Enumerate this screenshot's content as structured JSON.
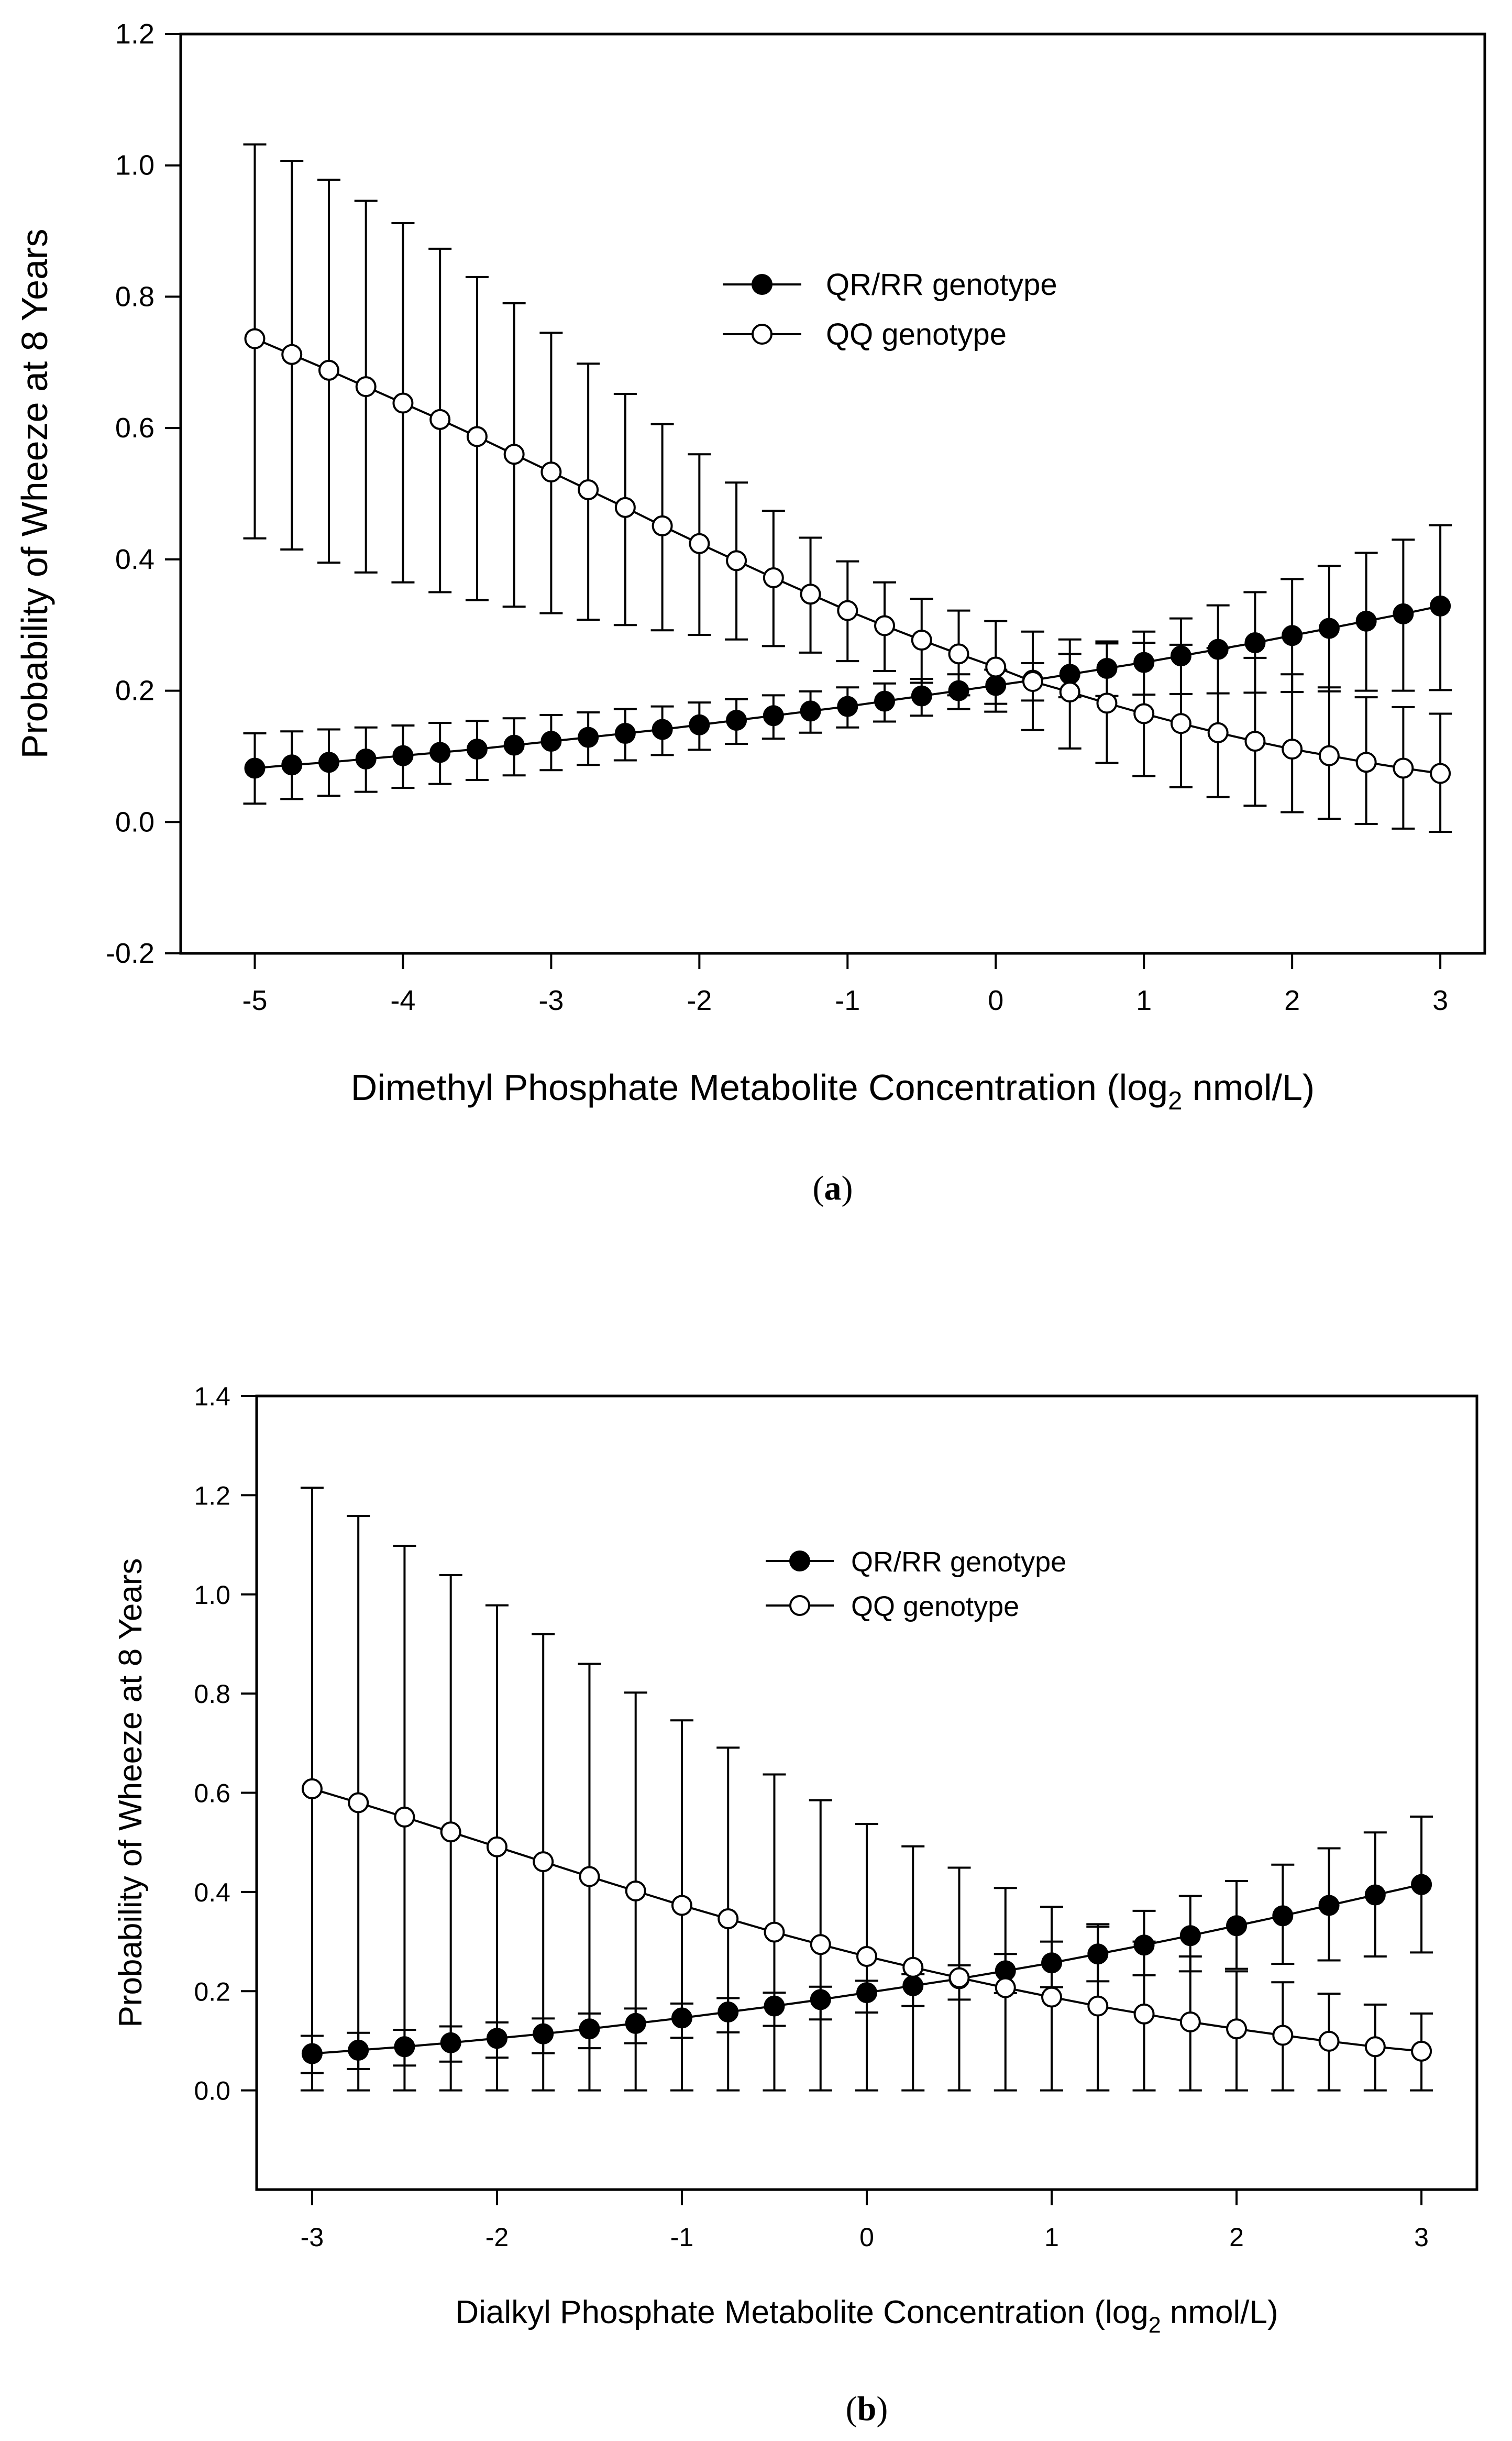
{
  "colors": {
    "line": "#000000",
    "filled_marker": "#000000",
    "open_marker": "#ffffff"
  },
  "chart_data": [
    {
      "type": "line",
      "panel_label": "a",
      "xlabel": "Dimethyl Phosphate Metabolite Concentration (log",
      "xlabel_sub": "2",
      "xlabel_end": " nmol/L)",
      "ylabel": "Probability of Wheeze at 8 Years",
      "xlim": [
        -5.5,
        3.3
      ],
      "ylim": [
        -0.2,
        1.2
      ],
      "xticks": [
        -5,
        -4,
        -3,
        -2,
        -1,
        0,
        1,
        2,
        3
      ],
      "yticks": [
        -0.2,
        0.0,
        0.2,
        0.4,
        0.6,
        0.8,
        1.0,
        1.2
      ],
      "grid": false,
      "legend_position": "top-right",
      "x": [
        -5,
        -4.75,
        -4.5,
        -4.25,
        -4,
        -3.75,
        -3.5,
        -3.25,
        -3,
        -2.75,
        -2.5,
        -2.25,
        -2,
        -1.75,
        -1.5,
        -1.25,
        -1,
        -0.75,
        -0.5,
        -0.25,
        0,
        0.25,
        0.5,
        0.75,
        1,
        1.25,
        1.5,
        1.75,
        2,
        2.25,
        2.5,
        2.75,
        3
      ],
      "series": [
        {
          "name": "QR/RR genotype",
          "marker": "filled",
          "y": [
            0.082,
            0.087,
            0.091,
            0.096,
            0.101,
            0.106,
            0.111,
            0.117,
            0.123,
            0.129,
            0.135,
            0.141,
            0.148,
            0.155,
            0.162,
            0.169,
            0.176,
            0.184,
            0.192,
            0.2,
            0.208,
            0.216,
            0.225,
            0.234,
            0.243,
            0.253,
            0.263,
            0.273,
            0.284,
            0.295,
            0.306,
            0.317,
            0.329
          ],
          "upper": [
            0.135,
            0.138,
            0.141,
            0.144,
            0.147,
            0.151,
            0.154,
            0.158,
            0.163,
            0.167,
            0.172,
            0.176,
            0.182,
            0.187,
            0.193,
            0.199,
            0.205,
            0.211,
            0.218,
            0.225,
            0.232,
            0.242,
            0.256,
            0.272,
            0.29,
            0.31,
            0.33,
            0.35,
            0.37,
            0.39,
            0.41,
            0.43,
            0.452
          ],
          "lower": [
            0.028,
            0.035,
            0.04,
            0.046,
            0.052,
            0.058,
            0.064,
            0.071,
            0.079,
            0.087,
            0.094,
            0.102,
            0.11,
            0.119,
            0.127,
            0.136,
            0.144,
            0.153,
            0.162,
            0.172,
            0.18,
            0.185,
            0.19,
            0.192,
            0.194,
            0.195,
            0.196,
            0.197,
            0.198,
            0.199,
            0.2,
            0.2,
            0.201
          ]
        },
        {
          "name": "QQ genotype",
          "marker": "open",
          "y": [
            0.736,
            0.712,
            0.688,
            0.663,
            0.638,
            0.613,
            0.587,
            0.56,
            0.533,
            0.506,
            0.479,
            0.451,
            0.424,
            0.398,
            0.372,
            0.347,
            0.322,
            0.299,
            0.277,
            0.256,
            0.236,
            0.214,
            0.198,
            0.181,
            0.165,
            0.15,
            0.136,
            0.123,
            0.111,
            0.101,
            0.091,
            0.082,
            0.074
          ],
          "upper": [
            1.032,
            1.007,
            0.978,
            0.946,
            0.912,
            0.873,
            0.83,
            0.79,
            0.745,
            0.698,
            0.652,
            0.606,
            0.56,
            0.517,
            0.474,
            0.433,
            0.397,
            0.365,
            0.34,
            0.322,
            0.306,
            0.29,
            0.278,
            0.275,
            0.273,
            0.27,
            0.265,
            0.25,
            0.225,
            0.205,
            0.19,
            0.175,
            0.165
          ],
          "lower": [
            0.432,
            0.415,
            0.395,
            0.38,
            0.365,
            0.35,
            0.338,
            0.328,
            0.318,
            0.308,
            0.3,
            0.292,
            0.285,
            0.278,
            0.268,
            0.258,
            0.245,
            0.23,
            0.212,
            0.193,
            0.168,
            0.14,
            0.112,
            0.09,
            0.07,
            0.053,
            0.038,
            0.025,
            0.015,
            0.005,
            -0.003,
            -0.01,
            -0.015
          ]
        }
      ]
    },
    {
      "type": "line",
      "panel_label": "b",
      "xlabel": "Dialkyl Phosphate Metabolite Concentration (log",
      "xlabel_sub": "2",
      "xlabel_end": " nmol/L)",
      "ylabel": "Probability of Wheeze at 8 Years",
      "xlim": [
        -3.3,
        3.3
      ],
      "ylim": [
        -0.2,
        1.4
      ],
      "xticks": [
        -3,
        -2,
        -1,
        0,
        1,
        2,
        3
      ],
      "yticks": [
        0.0,
        0.2,
        0.4,
        0.6,
        0.8,
        1.0,
        1.2,
        1.4
      ],
      "grid": false,
      "legend_position": "top-right",
      "x": [
        -3,
        -2.75,
        -2.5,
        -2.25,
        -2,
        -1.75,
        -1.5,
        -1.25,
        -1,
        -0.75,
        -0.5,
        -0.25,
        0,
        0.25,
        0.5,
        0.75,
        1,
        1.25,
        1.5,
        1.75,
        2,
        2.25,
        2.5,
        2.75,
        3
      ],
      "series": [
        {
          "name": "QR/RR genotype",
          "marker": "filled",
          "y": [
            0.074,
            0.081,
            0.088,
            0.096,
            0.105,
            0.114,
            0.124,
            0.135,
            0.146,
            0.158,
            0.17,
            0.183,
            0.197,
            0.211,
            0.225,
            0.241,
            0.257,
            0.275,
            0.293,
            0.312,
            0.332,
            0.352,
            0.373,
            0.394,
            0.415
          ],
          "upper": [
            0.11,
            0.116,
            0.122,
            0.129,
            0.137,
            0.145,
            0.155,
            0.165,
            0.175,
            0.186,
            0.197,
            0.209,
            0.221,
            0.234,
            0.252,
            0.275,
            0.3,
            0.33,
            0.362,
            0.392,
            0.422,
            0.455,
            0.488,
            0.52,
            0.552
          ],
          "lower": [
            0.035,
            0.043,
            0.05,
            0.058,
            0.066,
            0.075,
            0.085,
            0.095,
            0.106,
            0.117,
            0.13,
            0.143,
            0.157,
            0.17,
            0.183,
            0.196,
            0.208,
            0.22,
            0.232,
            0.24,
            0.245,
            0.255,
            0.262,
            0.27,
            0.278
          ]
        },
        {
          "name": "QQ genotype",
          "marker": "open",
          "y": [
            0.608,
            0.58,
            0.551,
            0.521,
            0.491,
            0.461,
            0.431,
            0.402,
            0.373,
            0.346,
            0.319,
            0.294,
            0.27,
            0.248,
            0.227,
            0.207,
            0.188,
            0.17,
            0.154,
            0.138,
            0.124,
            0.111,
            0.099,
            0.088,
            0.079
          ],
          "upper": [
            1.215,
            1.158,
            1.098,
            1.039,
            0.978,
            0.92,
            0.86,
            0.802,
            0.746,
            0.691,
            0.637,
            0.585,
            0.537,
            0.492,
            0.449,
            0.408,
            0.37,
            0.335,
            0.3,
            0.27,
            0.24,
            0.218,
            0.195,
            0.173,
            0.155
          ],
          "lower": [
            0.0,
            0.0,
            0.0,
            0.0,
            0.0,
            0.0,
            0.0,
            0.0,
            0.0,
            0.0,
            0.0,
            0.0,
            0.0,
            0.0,
            0.0,
            0.0,
            0.0,
            0.0,
            0.0,
            0.0,
            0.0,
            0.0,
            0.0,
            0.0,
            0.0
          ]
        }
      ]
    }
  ]
}
